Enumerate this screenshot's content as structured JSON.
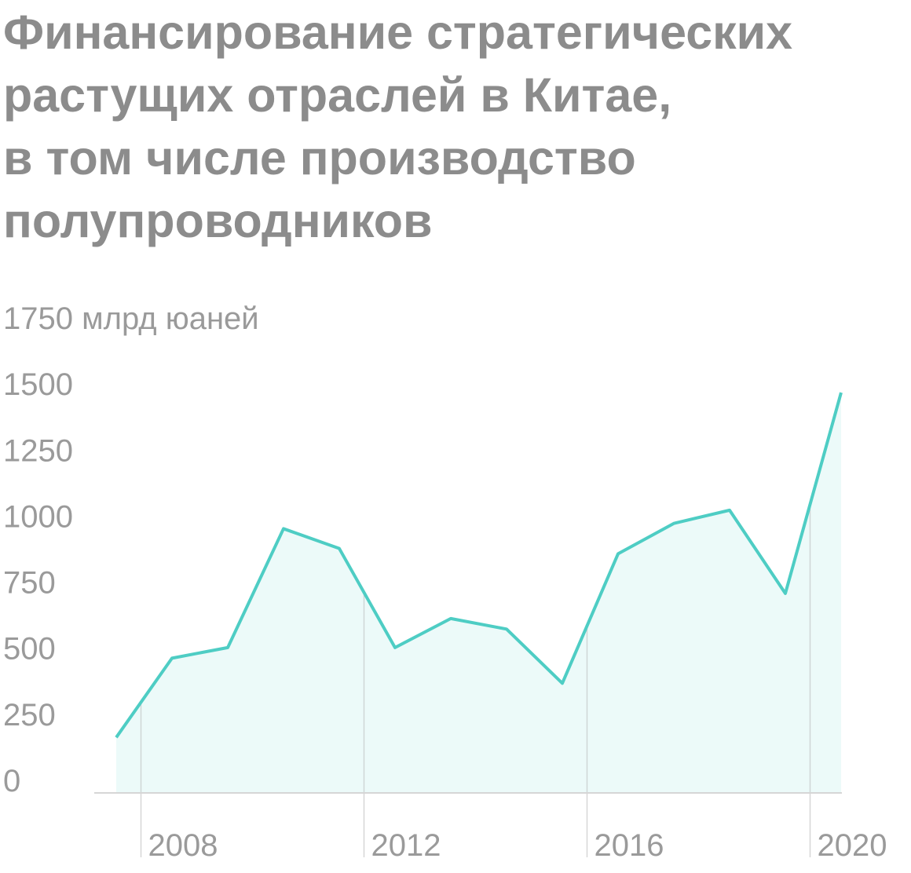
{
  "chart_data": {
    "type": "area",
    "title": [
      "Финансирование стратегических",
      "растущих отраслей в Китае,",
      "в том числе производство",
      "полупроводников"
    ],
    "categories": [
      null,
      "2008",
      null,
      null,
      null,
      "2012",
      null,
      null,
      null,
      "2016",
      null,
      null,
      null,
      "2020"
    ],
    "series": [
      {
        "color": "#4ecdc4",
        "values": [
          210,
          510,
          550,
          1000,
          925,
          550,
          660,
          620,
          415,
          905,
          1020,
          1070,
          755,
          1515
        ]
      }
    ],
    "ylim": [
      0,
      1750
    ],
    "yticks": [
      0,
      250,
      500,
      750,
      1000,
      1250,
      1500,
      {
        "value": 1750,
        "label": "1750 млрд юаней"
      }
    ],
    "grid": false
  }
}
